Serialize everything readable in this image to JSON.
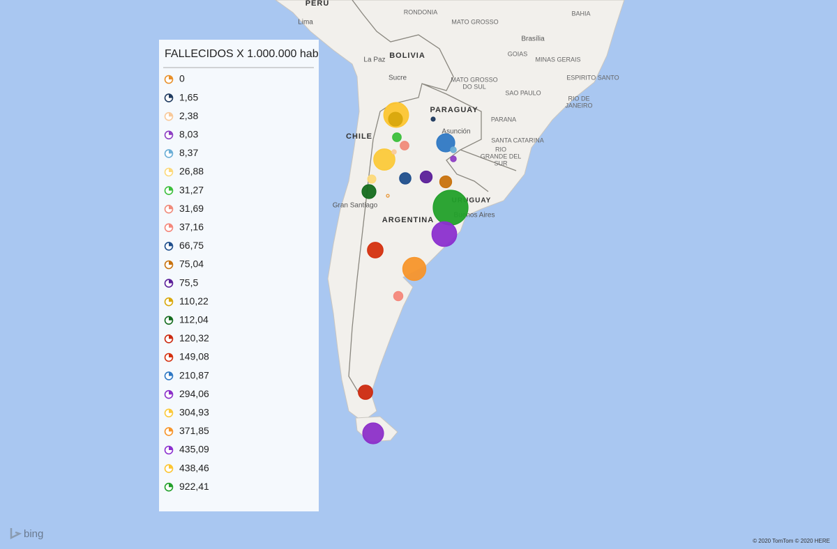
{
  "legend": {
    "title": "FALLECIDOS X 1.000.000 hab",
    "items": [
      {
        "label": "0",
        "value": 0,
        "color": "#e8902a"
      },
      {
        "label": "1,65",
        "value": 1.65,
        "color": "#1f3a5f"
      },
      {
        "label": "2,38",
        "value": 2.38,
        "color": "#f8c99a"
      },
      {
        "label": "8,03",
        "value": 8.03,
        "color": "#8e3fc4"
      },
      {
        "label": "8,37",
        "value": 8.37,
        "color": "#6baed6"
      },
      {
        "label": "26,88",
        "value": 26.88,
        "color": "#fcd97a"
      },
      {
        "label": "31,27",
        "value": 31.27,
        "color": "#3cbf3c"
      },
      {
        "label": "31,69",
        "value": 31.69,
        "color": "#f08a7a"
      },
      {
        "label": "37,16",
        "value": 37.16,
        "color": "#f4877b"
      },
      {
        "label": "66,75",
        "value": 66.75,
        "color": "#1f4e8c"
      },
      {
        "label": "75,04",
        "value": 75.04,
        "color": "#c8720e"
      },
      {
        "label": "75,5",
        "value": 75.5,
        "color": "#5b1f99"
      },
      {
        "label": "110,22",
        "value": 110.22,
        "color": "#d9a80c"
      },
      {
        "label": "112,04",
        "value": 112.04,
        "color": "#146b1e"
      },
      {
        "label": "120,32",
        "value": 120.32,
        "color": "#cc2a10"
      },
      {
        "label": "149,08",
        "value": 149.08,
        "color": "#d4300f"
      },
      {
        "label": "210,87",
        "value": 210.87,
        "color": "#2f78c4"
      },
      {
        "label": "294,06",
        "value": 294.06,
        "color": "#8c2fc9"
      },
      {
        "label": "304,93",
        "value": 304.93,
        "color": "#fbc93a"
      },
      {
        "label": "371,85",
        "value": 371.85,
        "color": "#f7952b"
      },
      {
        "label": "435,09",
        "value": 435.09,
        "color": "#8b2fcf"
      },
      {
        "label": "438,46",
        "value": 438.46,
        "color": "#fcc531"
      },
      {
        "label": "922,41",
        "value": 922.41,
        "color": "#22a02a"
      }
    ]
  },
  "map": {
    "labels": [
      [
        "PERU"
      ],
      [
        "Lima"
      ],
      [
        "BOLIVIA"
      ],
      [
        "La Paz"
      ],
      [
        "Sucre"
      ],
      [
        "RONDONIA"
      ],
      [
        "MATO GROSSO"
      ],
      [
        "BAHIA"
      ],
      [
        "Brasília"
      ],
      [
        "GOIAS"
      ],
      [
        "MINAS GERAIS"
      ],
      [
        "ESPIRITO SANTO"
      ],
      [
        "MATO GROSSO",
        "DO SUL"
      ],
      [
        "SAO PAULO"
      ],
      [
        "RIO DE",
        "JANEIRO"
      ],
      [
        "PARAGUAY"
      ],
      [
        "Asunción"
      ],
      [
        "PARANA"
      ],
      [
        "SANTA CATARINA"
      ],
      [
        "RIO",
        "GRANDE DEL",
        "SUR"
      ],
      [
        "CHILE"
      ],
      [
        "Gran Santiago"
      ],
      [
        "ARGENTINA"
      ],
      [
        "URUGUAY"
      ],
      [
        "Buenos Aires"
      ]
    ],
    "logo": "bing",
    "attribution": "© 2020 TomTom © 2020 HERE"
  }
}
